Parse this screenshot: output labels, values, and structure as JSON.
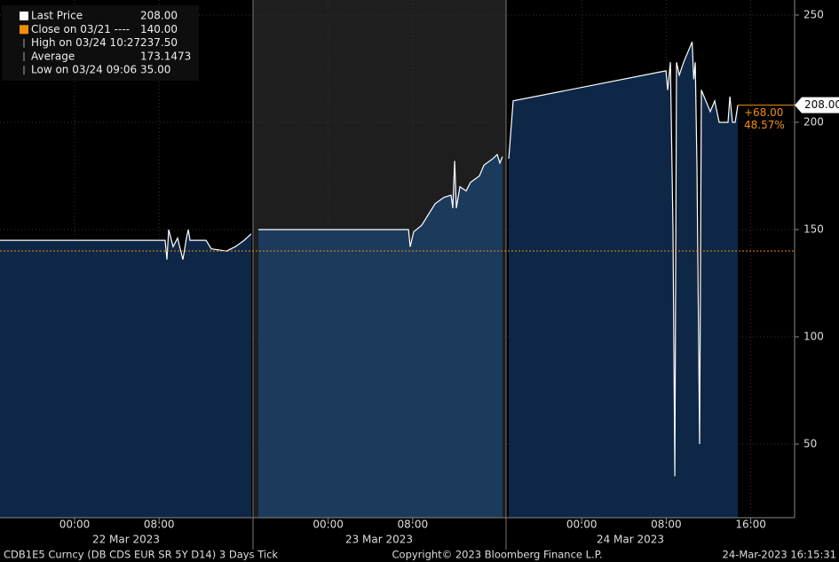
{
  "chart_data": {
    "type": "area",
    "series": [
      {
        "name": "Last Price",
        "color": "#ffffff",
        "x": [
          -7.06,
          8.57,
          8.74,
          8.91,
          9.33,
          9.75,
          10.25,
          10.59,
          10.76,
          10.92,
          12.44,
          12.94,
          14.37,
          15.21,
          16.05,
          16.72,
          null,
          17.39,
          31.6,
          31.76,
          32.1,
          32.86,
          34.12,
          34.96,
          35.63,
          35.8,
          35.97,
          36.13,
          36.47,
          37.06,
          37.48,
          38.32,
          38.74,
          39.58,
          40.0,
          40.25,
          40.5,
          null,
          41.09,
          41.51,
          55.97,
          56.13,
          56.39,
          56.64,
          56.81,
          56.97,
          57.23,
          57.65,
          58.45,
          58.6,
          58.75,
          58.91,
          59.16,
          59.33,
          59.75,
          60.17,
          60.59,
          61.01,
          61.85,
          62.02,
          62.27,
          62.52,
          62.77
        ],
        "values": [
          145,
          145,
          136,
          150,
          142,
          146,
          136,
          146,
          150,
          145,
          145,
          141,
          140,
          142,
          145,
          148,
          null,
          150,
          150,
          142,
          149,
          152,
          162,
          165,
          166,
          160,
          182,
          160,
          170,
          168,
          172,
          175,
          180,
          183,
          185,
          181,
          184,
          null,
          183,
          210,
          224,
          215,
          228,
          150,
          35,
          228,
          222,
          228,
          237.5,
          220,
          228,
          180,
          50,
          215,
          210,
          205,
          210,
          200,
          200,
          212,
          200,
          200,
          208
        ]
      }
    ],
    "fills": [
      "#0f2747",
      "#1c3a5c",
      "#0f2747"
    ],
    "ylim": [
      15.7,
      257
    ],
    "yticks": [
      50,
      100,
      150,
      200,
      250
    ],
    "xlim": [
      -7.06,
      68.15
    ],
    "xticks": [
      {
        "value": 0,
        "label": "00:00"
      },
      {
        "value": 8,
        "label": "08:00"
      },
      {
        "value": 24,
        "label": "00:00"
      },
      {
        "value": 32,
        "label": "08:00"
      },
      {
        "value": 48,
        "label": "00:00"
      },
      {
        "value": 56,
        "label": "08:00"
      },
      {
        "value": 64,
        "label": "16:00"
      }
    ],
    "day_labels": [
      "22 Mar 2023",
      "23 Mar 2023",
      "24 Mar 2023"
    ],
    "close": 140,
    "last_price": {
      "value": 208,
      "label": "208.00"
    },
    "change": "+68.00",
    "change_pct": "48.57%",
    "legend": [
      {
        "name": "Last Price",
        "value": "208.00"
      },
      {
        "name": "Close on 03/21 ----",
        "value": "140.00"
      },
      {
        "name": "High on 03/24 10:27",
        "value": "237.50"
      },
      {
        "name": "Average",
        "value": "173.1473"
      },
      {
        "name": "Low on 03/24 09:06",
        "value": "35.00"
      }
    ],
    "footer": {
      "left": "CDB1E5 Curncy (DB CDS EUR SR 5Y D14) 3 Days  Tick",
      "center": "Copyright© 2023 Bloomberg Finance L.P.",
      "right": "24-Mar-2023 16:15:31"
    }
  }
}
